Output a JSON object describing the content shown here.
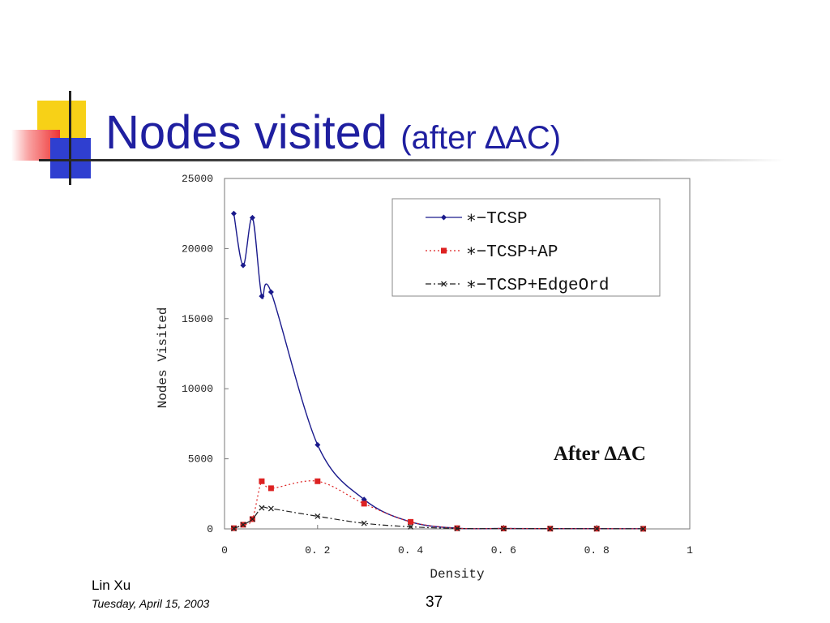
{
  "slide": {
    "title_main": "Nodes visited",
    "title_sub": "(after ∆AC)",
    "footer_name": "Lin Xu",
    "footer_date": "Tuesday, April 15, 2003",
    "page_number": "37"
  },
  "colors": {
    "title": "#1f1fa0",
    "accent_yellow": "#f7d117",
    "accent_red": "#ee3333",
    "accent_blue": "#2f3fd0"
  },
  "chart_data": {
    "type": "line",
    "title": "",
    "annotation": "After ∆AC",
    "xlabel": "Density",
    "ylabel": "Nodes Visited",
    "xlim": [
      0,
      1
    ],
    "ylim": [
      0,
      25000
    ],
    "xticks": [
      0,
      0.2,
      0.4,
      0.6,
      0.8,
      1
    ],
    "xtick_labels": [
      "0",
      "0. 2",
      "0. 4",
      "0. 6",
      "0. 8",
      "1"
    ],
    "yticks": [
      0,
      5000,
      10000,
      15000,
      20000,
      25000
    ],
    "ytick_labels": [
      "0",
      "5000",
      "10000",
      "15000",
      "20000",
      "25000"
    ],
    "grid": false,
    "legend_position": "top-right",
    "series": [
      {
        "name": "∗−TCSP",
        "color": "#1a1a8c",
        "line_style": "solid",
        "marker": "diamond",
        "x": [
          0.02,
          0.04,
          0.06,
          0.08,
          0.1,
          0.2,
          0.3,
          0.4,
          0.5,
          0.6,
          0.7,
          0.8,
          0.9
        ],
        "y": [
          22500,
          18800,
          22200,
          16600,
          16900,
          6000,
          2100,
          500,
          50,
          30,
          20,
          15,
          10
        ]
      },
      {
        "name": "∗−TCSP+AP",
        "color": "#dd2222",
        "line_style": "dotted",
        "marker": "square",
        "x": [
          0.02,
          0.04,
          0.06,
          0.08,
          0.1,
          0.2,
          0.3,
          0.4,
          0.5,
          0.6,
          0.7,
          0.8,
          0.9
        ],
        "y": [
          50,
          300,
          700,
          3400,
          2900,
          3400,
          1800,
          500,
          50,
          30,
          20,
          15,
          10
        ]
      },
      {
        "name": "∗−TCSP+EdgeOrd",
        "color": "#222222",
        "line_style": "dashdot",
        "marker": "x",
        "x": [
          0.02,
          0.04,
          0.06,
          0.08,
          0.1,
          0.2,
          0.3,
          0.4,
          0.5,
          0.6,
          0.7,
          0.8,
          0.9
        ],
        "y": [
          30,
          300,
          700,
          1500,
          1450,
          900,
          400,
          150,
          30,
          20,
          15,
          10,
          5
        ]
      }
    ]
  }
}
